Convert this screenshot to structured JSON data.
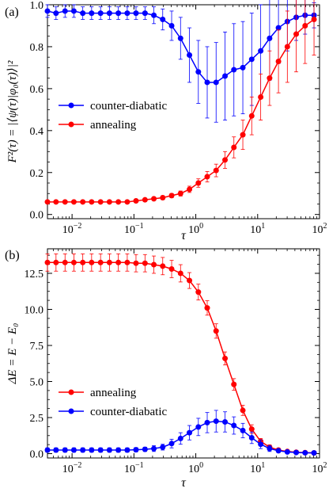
{
  "chart_data": [
    {
      "panel_label": "(a)",
      "type": "line",
      "xscale": "log",
      "xlim": [
        0.004,
        100
      ],
      "ylim": [
        -0.02,
        1.0
      ],
      "xlabel": "τ",
      "ylabel": "F²(τ) = |⟨ψ(τ)|φ₀(τ)⟩|²",
      "xticks": [
        {
          "v": 0.01,
          "base": "10",
          "exp": "−2"
        },
        {
          "v": 0.1,
          "base": "10",
          "exp": "−1"
        },
        {
          "v": 1,
          "base": "10",
          "exp": "0"
        },
        {
          "v": 10,
          "base": "10",
          "exp": "1"
        },
        {
          "v": 100,
          "base": "10",
          "exp": "2"
        }
      ],
      "yticks": [
        {
          "v": 0.0,
          "label": "0.0"
        },
        {
          "v": 0.2,
          "label": "0.2"
        },
        {
          "v": 0.4,
          "label": "0.4"
        },
        {
          "v": 0.6,
          "label": "0.6"
        },
        {
          "v": 0.8,
          "label": "0.8"
        },
        {
          "v": 1.0,
          "label": "1.0"
        }
      ],
      "legend_position": "center-left",
      "x": [
        0.004,
        0.0055,
        0.0077,
        0.0107,
        0.0149,
        0.0207,
        0.0289,
        0.0402,
        0.056,
        0.078,
        0.108,
        0.151,
        0.21,
        0.292,
        0.407,
        0.567,
        0.79,
        1.1,
        1.53,
        2.13,
        2.97,
        4.13,
        5.76,
        8.02,
        11.2,
        15.6,
        21.7,
        30.2,
        42.0,
        58.5,
        81.5
      ],
      "series": [
        {
          "name": "counter-diabatic",
          "color": "#0000ff",
          "values": [
            0.97,
            0.96,
            0.97,
            0.97,
            0.96,
            0.96,
            0.96,
            0.96,
            0.96,
            0.96,
            0.96,
            0.96,
            0.95,
            0.93,
            0.9,
            0.84,
            0.76,
            0.68,
            0.63,
            0.63,
            0.66,
            0.69,
            0.7,
            0.74,
            0.78,
            0.84,
            0.89,
            0.92,
            0.94,
            0.95,
            0.95
          ],
          "errors": [
            0.03,
            0.03,
            0.03,
            0.03,
            0.03,
            0.03,
            0.03,
            0.03,
            0.03,
            0.03,
            0.03,
            0.03,
            0.04,
            0.05,
            0.07,
            0.1,
            0.13,
            0.15,
            0.17,
            0.19,
            0.21,
            0.22,
            0.22,
            0.22,
            0.22,
            0.2,
            0.17,
            0.14,
            0.11,
            0.09,
            0.06
          ]
        },
        {
          "name": "annealing",
          "color": "#ff0000",
          "values": [
            0.06,
            0.06,
            0.06,
            0.06,
            0.06,
            0.06,
            0.06,
            0.06,
            0.06,
            0.06,
            0.065,
            0.07,
            0.075,
            0.08,
            0.09,
            0.1,
            0.12,
            0.15,
            0.18,
            0.21,
            0.26,
            0.32,
            0.38,
            0.47,
            0.56,
            0.65,
            0.73,
            0.8,
            0.86,
            0.9,
            0.93
          ],
          "errors": [
            0.005,
            0.005,
            0.005,
            0.005,
            0.005,
            0.005,
            0.005,
            0.005,
            0.005,
            0.005,
            0.006,
            0.007,
            0.008,
            0.009,
            0.01,
            0.012,
            0.015,
            0.02,
            0.025,
            0.03,
            0.04,
            0.05,
            0.07,
            0.09,
            0.11,
            0.13,
            0.15,
            0.17,
            0.18,
            0.18,
            0.17
          ]
        }
      ]
    },
    {
      "panel_label": "(b)",
      "type": "line",
      "xscale": "log",
      "xlim": [
        0.004,
        100
      ],
      "ylim": [
        -0.3,
        14.2
      ],
      "xlabel": "τ",
      "ylabel": "ΔE = E − E₀",
      "xticks": [
        {
          "v": 0.01,
          "base": "10",
          "exp": "−2"
        },
        {
          "v": 0.1,
          "base": "10",
          "exp": "−1"
        },
        {
          "v": 1,
          "base": "10",
          "exp": "0"
        },
        {
          "v": 10,
          "base": "10",
          "exp": "1"
        },
        {
          "v": 100,
          "base": "10",
          "exp": "2"
        }
      ],
      "yticks": [
        {
          "v": 0.0,
          "label": "0.0"
        },
        {
          "v": 2.5,
          "label": "2.5"
        },
        {
          "v": 5.0,
          "label": "5.0"
        },
        {
          "v": 7.5,
          "label": "7.5"
        },
        {
          "v": 10.0,
          "label": "10.0"
        },
        {
          "v": 12.5,
          "label": "12.5"
        }
      ],
      "legend_position": "center-left",
      "x": [
        0.004,
        0.0055,
        0.0077,
        0.0107,
        0.0149,
        0.0207,
        0.0289,
        0.0402,
        0.056,
        0.078,
        0.108,
        0.151,
        0.21,
        0.292,
        0.407,
        0.567,
        0.79,
        1.1,
        1.53,
        2.13,
        2.97,
        4.13,
        5.76,
        8.02,
        11.2,
        15.6,
        21.7,
        30.2,
        42.0,
        58.5,
        81.5
      ],
      "series": [
        {
          "name": "annealing",
          "color": "#ff0000",
          "values": [
            13.25,
            13.25,
            13.25,
            13.25,
            13.25,
            13.25,
            13.25,
            13.25,
            13.25,
            13.25,
            13.2,
            13.2,
            13.1,
            13.0,
            12.8,
            12.5,
            12.0,
            11.2,
            10.1,
            8.5,
            6.6,
            4.8,
            3.0,
            1.7,
            0.85,
            0.45,
            0.25,
            0.15,
            0.1,
            0.07,
            0.05
          ],
          "errors": [
            0.6,
            0.6,
            0.6,
            0.6,
            0.6,
            0.6,
            0.6,
            0.6,
            0.6,
            0.6,
            0.6,
            0.6,
            0.6,
            0.6,
            0.6,
            0.6,
            0.55,
            0.55,
            0.5,
            0.5,
            0.45,
            0.4,
            0.35,
            0.3,
            0.2,
            0.15,
            0.1,
            0.08,
            0.06,
            0.05,
            0.04
          ]
        },
        {
          "name": "counter-diabatic",
          "color": "#0000ff",
          "values": [
            0.25,
            0.25,
            0.25,
            0.25,
            0.25,
            0.25,
            0.25,
            0.25,
            0.25,
            0.25,
            0.27,
            0.3,
            0.35,
            0.45,
            0.7,
            1.05,
            1.45,
            1.85,
            2.15,
            2.25,
            2.2,
            1.95,
            1.6,
            1.1,
            0.65,
            0.35,
            0.2,
            0.12,
            0.08,
            0.06,
            0.05
          ],
          "errors": [
            0.15,
            0.15,
            0.15,
            0.15,
            0.15,
            0.15,
            0.15,
            0.15,
            0.15,
            0.15,
            0.15,
            0.15,
            0.2,
            0.2,
            0.3,
            0.4,
            0.5,
            0.6,
            0.7,
            0.75,
            0.7,
            0.6,
            0.5,
            0.4,
            0.3,
            0.2,
            0.12,
            0.08,
            0.06,
            0.05,
            0.04
          ]
        }
      ]
    }
  ]
}
